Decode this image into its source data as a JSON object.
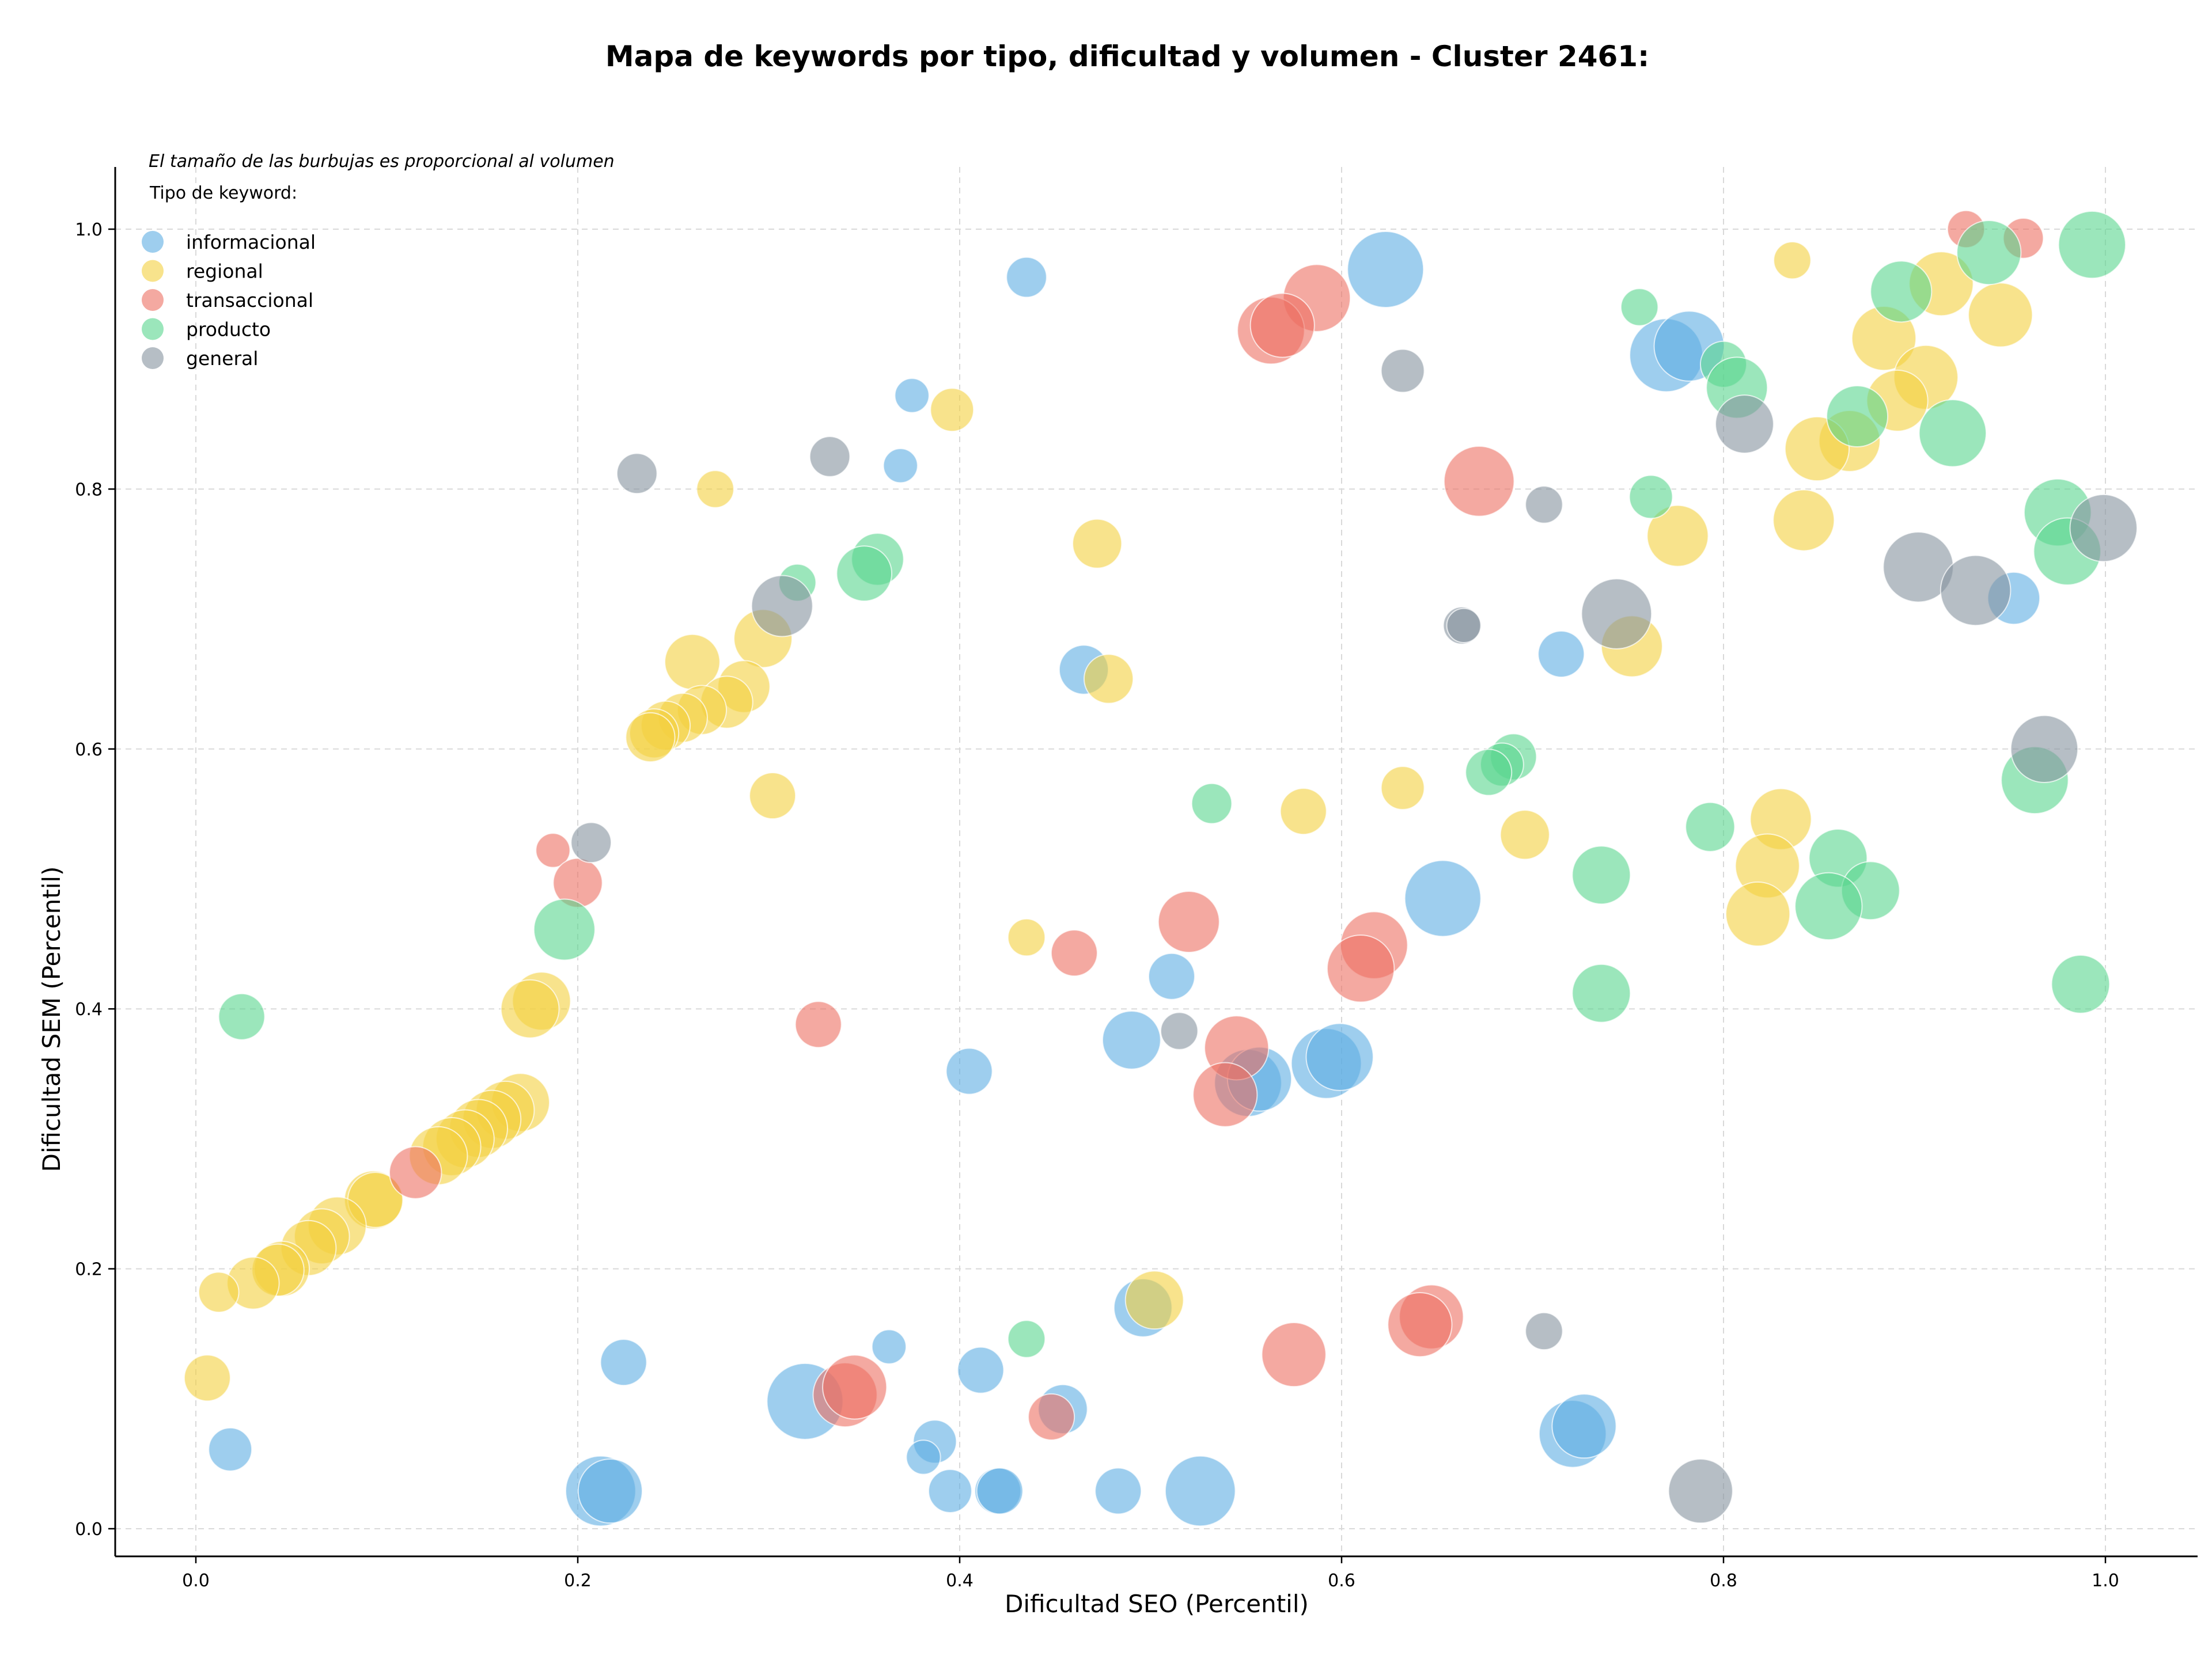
{
  "chart_data": {
    "type": "scatter",
    "title": "Mapa de keywords por tipo, dificultad y volumen - Cluster 2461:",
    "xlabel": "Dificultad SEO (Percentil)",
    "ylabel": "Dificultad SEM (Percentil)",
    "xlim": [
      -0.04,
      1.05
    ],
    "ylim": [
      -0.02,
      1.05
    ],
    "x_ticks": [
      "0.0",
      "0.2",
      "0.4",
      "0.6",
      "0.8",
      "1.0"
    ],
    "y_ticks": [
      "0.0",
      "0.2",
      "0.4",
      "0.6",
      "0.8",
      "1.0"
    ],
    "grid": true,
    "legend_placement": "top-left",
    "legend_title": "Tipo de keyword:",
    "annotation": "El tamaño de las burbujas es proporcional al volumen",
    "series": [
      {
        "name": "informacional",
        "color": "#5DADE2",
        "points": [
          {
            "x": 0.435,
            "y": 0.963,
            "r": 0.4
          },
          {
            "x": 0.375,
            "y": 0.872,
            "r": 0.3
          },
          {
            "x": 0.369,
            "y": 0.818,
            "r": 0.3
          },
          {
            "x": 0.623,
            "y": 0.969,
            "r": 1.0
          },
          {
            "x": 0.77,
            "y": 0.903,
            "r": 0.95
          },
          {
            "x": 0.782,
            "y": 0.91,
            "r": 0.9
          },
          {
            "x": 0.715,
            "y": 0.673,
            "r": 0.5
          },
          {
            "x": 0.952,
            "y": 0.716,
            "r": 0.6
          },
          {
            "x": 0.465,
            "y": 0.661,
            "r": 0.55
          },
          {
            "x": 0.653,
            "y": 0.485,
            "r": 1.0
          },
          {
            "x": 0.511,
            "y": 0.425,
            "r": 0.5
          },
          {
            "x": 0.49,
            "y": 0.376,
            "r": 0.7
          },
          {
            "x": 0.405,
            "y": 0.352,
            "r": 0.5
          },
          {
            "x": 0.551,
            "y": 0.343,
            "r": 0.85
          },
          {
            "x": 0.557,
            "y": 0.346,
            "r": 0.8
          },
          {
            "x": 0.592,
            "y": 0.358,
            "r": 0.9
          },
          {
            "x": 0.599,
            "y": 0.363,
            "r": 0.85
          },
          {
            "x": 0.496,
            "y": 0.17,
            "r": 0.7
          },
          {
            "x": 0.224,
            "y": 0.128,
            "r": 0.5
          },
          {
            "x": 0.319,
            "y": 0.098,
            "r": 1.0
          },
          {
            "x": 0.363,
            "y": 0.14,
            "r": 0.3
          },
          {
            "x": 0.411,
            "y": 0.122,
            "r": 0.5
          },
          {
            "x": 0.387,
            "y": 0.067,
            "r": 0.45
          },
          {
            "x": 0.381,
            "y": 0.055,
            "r": 0.3
          },
          {
            "x": 0.454,
            "y": 0.092,
            "r": 0.55
          },
          {
            "x": 0.395,
            "y": 0.029,
            "r": 0.45
          },
          {
            "x": 0.42,
            "y": 0.029,
            "r": 0.5
          },
          {
            "x": 0.421,
            "y": 0.029,
            "r": 0.5
          },
          {
            "x": 0.483,
            "y": 0.029,
            "r": 0.5
          },
          {
            "x": 0.212,
            "y": 0.029,
            "r": 0.9
          },
          {
            "x": 0.217,
            "y": 0.029,
            "r": 0.8
          },
          {
            "x": 0.526,
            "y": 0.029,
            "r": 0.9
          },
          {
            "x": 0.721,
            "y": 0.073,
            "r": 0.85
          },
          {
            "x": 0.727,
            "y": 0.079,
            "r": 0.8
          },
          {
            "x": 0.018,
            "y": 0.061,
            "r": 0.45
          }
        ]
      },
      {
        "name": "regional",
        "color": "#F4D03F",
        "points": [
          {
            "x": 0.836,
            "y": 0.976,
            "r": 0.35
          },
          {
            "x": 0.396,
            "y": 0.861,
            "r": 0.45
          },
          {
            "x": 0.272,
            "y": 0.8,
            "r": 0.35
          },
          {
            "x": 0.472,
            "y": 0.758,
            "r": 0.55
          },
          {
            "x": 0.914,
            "y": 0.958,
            "r": 0.8
          },
          {
            "x": 0.945,
            "y": 0.934,
            "r": 0.8
          },
          {
            "x": 0.884,
            "y": 0.916,
            "r": 0.8
          },
          {
            "x": 0.906,
            "y": 0.886,
            "r": 0.8
          },
          {
            "x": 0.891,
            "y": 0.868,
            "r": 0.75
          },
          {
            "x": 0.866,
            "y": 0.837,
            "r": 0.75
          },
          {
            "x": 0.849,
            "y": 0.831,
            "r": 0.8
          },
          {
            "x": 0.842,
            "y": 0.776,
            "r": 0.75
          },
          {
            "x": 0.776,
            "y": 0.764,
            "r": 0.75
          },
          {
            "x": 0.752,
            "y": 0.679,
            "r": 0.75
          },
          {
            "x": 0.478,
            "y": 0.654,
            "r": 0.55
          },
          {
            "x": 0.26,
            "y": 0.667,
            "r": 0.65
          },
          {
            "x": 0.297,
            "y": 0.685,
            "r": 0.7
          },
          {
            "x": 0.287,
            "y": 0.648,
            "r": 0.6
          },
          {
            "x": 0.278,
            "y": 0.636,
            "r": 0.6
          },
          {
            "x": 0.265,
            "y": 0.63,
            "r": 0.55
          },
          {
            "x": 0.255,
            "y": 0.624,
            "r": 0.55
          },
          {
            "x": 0.246,
            "y": 0.618,
            "r": 0.55
          },
          {
            "x": 0.24,
            "y": 0.612,
            "r": 0.55
          },
          {
            "x": 0.238,
            "y": 0.609,
            "r": 0.55
          },
          {
            "x": 0.302,
            "y": 0.564,
            "r": 0.5
          },
          {
            "x": 0.632,
            "y": 0.57,
            "r": 0.45
          },
          {
            "x": 0.58,
            "y": 0.552,
            "r": 0.5
          },
          {
            "x": 0.696,
            "y": 0.534,
            "r": 0.55
          },
          {
            "x": 0.83,
            "y": 0.546,
            "r": 0.75
          },
          {
            "x": 0.823,
            "y": 0.51,
            "r": 0.8
          },
          {
            "x": 0.818,
            "y": 0.473,
            "r": 0.8
          },
          {
            "x": 0.435,
            "y": 0.455,
            "r": 0.35
          },
          {
            "x": 0.181,
            "y": 0.406,
            "r": 0.7
          },
          {
            "x": 0.175,
            "y": 0.4,
            "r": 0.7
          },
          {
            "x": 0.17,
            "y": 0.328,
            "r": 0.7
          },
          {
            "x": 0.162,
            "y": 0.322,
            "r": 0.7
          },
          {
            "x": 0.155,
            "y": 0.315,
            "r": 0.7
          },
          {
            "x": 0.148,
            "y": 0.308,
            "r": 0.7
          },
          {
            "x": 0.141,
            "y": 0.3,
            "r": 0.7
          },
          {
            "x": 0.134,
            "y": 0.294,
            "r": 0.7
          },
          {
            "x": 0.127,
            "y": 0.287,
            "r": 0.7
          },
          {
            "x": 0.093,
            "y": 0.253,
            "r": 0.7
          },
          {
            "x": 0.094,
            "y": 0.253,
            "r": 0.65
          },
          {
            "x": 0.074,
            "y": 0.233,
            "r": 0.7
          },
          {
            "x": 0.066,
            "y": 0.225,
            "r": 0.65
          },
          {
            "x": 0.059,
            "y": 0.216,
            "r": 0.65
          },
          {
            "x": 0.045,
            "y": 0.2,
            "r": 0.65
          },
          {
            "x": 0.043,
            "y": 0.199,
            "r": 0.6
          },
          {
            "x": 0.03,
            "y": 0.189,
            "r": 0.6
          },
          {
            "x": 0.012,
            "y": 0.182,
            "r": 0.4
          },
          {
            "x": 0.006,
            "y": 0.116,
            "r": 0.5
          },
          {
            "x": 0.502,
            "y": 0.176,
            "r": 0.7
          }
        ]
      },
      {
        "name": "transaccional",
        "color": "#EC7063",
        "points": [
          {
            "x": 0.927,
            "y": 1.0,
            "r": 0.35
          },
          {
            "x": 0.957,
            "y": 0.993,
            "r": 0.4
          },
          {
            "x": 0.587,
            "y": 0.947,
            "r": 0.85
          },
          {
            "x": 0.563,
            "y": 0.922,
            "r": 0.85
          },
          {
            "x": 0.569,
            "y": 0.926,
            "r": 0.8
          },
          {
            "x": 0.672,
            "y": 0.806,
            "r": 0.9
          },
          {
            "x": 0.187,
            "y": 0.522,
            "r": 0.3
          },
          {
            "x": 0.2,
            "y": 0.497,
            "r": 0.55
          },
          {
            "x": 0.52,
            "y": 0.467,
            "r": 0.75
          },
          {
            "x": 0.46,
            "y": 0.443,
            "r": 0.5
          },
          {
            "x": 0.617,
            "y": 0.449,
            "r": 0.85
          },
          {
            "x": 0.61,
            "y": 0.431,
            "r": 0.85
          },
          {
            "x": 0.326,
            "y": 0.388,
            "r": 0.5
          },
          {
            "x": 0.545,
            "y": 0.37,
            "r": 0.8
          },
          {
            "x": 0.539,
            "y": 0.334,
            "r": 0.8
          },
          {
            "x": 0.647,
            "y": 0.163,
            "r": 0.8
          },
          {
            "x": 0.641,
            "y": 0.157,
            "r": 0.8
          },
          {
            "x": 0.575,
            "y": 0.134,
            "r": 0.8
          },
          {
            "x": 0.34,
            "y": 0.103,
            "r": 0.8
          },
          {
            "x": 0.345,
            "y": 0.109,
            "r": 0.8
          },
          {
            "x": 0.448,
            "y": 0.086,
            "r": 0.5
          },
          {
            "x": 0.115,
            "y": 0.274,
            "r": 0.6
          }
        ]
      },
      {
        "name": "producto",
        "color": "#58D68D",
        "points": [
          {
            "x": 0.993,
            "y": 0.988,
            "r": 0.85
          },
          {
            "x": 0.939,
            "y": 0.982,
            "r": 0.8
          },
          {
            "x": 0.893,
            "y": 0.952,
            "r": 0.75
          },
          {
            "x": 0.756,
            "y": 0.94,
            "r": 0.35
          },
          {
            "x": 0.8,
            "y": 0.896,
            "r": 0.5
          },
          {
            "x": 0.807,
            "y": 0.878,
            "r": 0.75
          },
          {
            "x": 0.87,
            "y": 0.856,
            "r": 0.75
          },
          {
            "x": 0.92,
            "y": 0.843,
            "r": 0.85
          },
          {
            "x": 0.762,
            "y": 0.794,
            "r": 0.45
          },
          {
            "x": 0.975,
            "y": 0.782,
            "r": 0.85
          },
          {
            "x": 0.98,
            "y": 0.752,
            "r": 0.85
          },
          {
            "x": 0.315,
            "y": 0.728,
            "r": 0.35
          },
          {
            "x": 0.357,
            "y": 0.746,
            "r": 0.6
          },
          {
            "x": 0.35,
            "y": 0.735,
            "r": 0.65
          },
          {
            "x": 0.532,
            "y": 0.558,
            "r": 0.4
          },
          {
            "x": 0.69,
            "y": 0.594,
            "r": 0.5
          },
          {
            "x": 0.684,
            "y": 0.588,
            "r": 0.45
          },
          {
            "x": 0.677,
            "y": 0.582,
            "r": 0.5
          },
          {
            "x": 0.963,
            "y": 0.576,
            "r": 0.85
          },
          {
            "x": 0.793,
            "y": 0.54,
            "r": 0.55
          },
          {
            "x": 0.86,
            "y": 0.516,
            "r": 0.7
          },
          {
            "x": 0.736,
            "y": 0.503,
            "r": 0.7
          },
          {
            "x": 0.877,
            "y": 0.491,
            "r": 0.7
          },
          {
            "x": 0.855,
            "y": 0.479,
            "r": 0.85
          },
          {
            "x": 0.736,
            "y": 0.412,
            "r": 0.7
          },
          {
            "x": 0.987,
            "y": 0.419,
            "r": 0.7
          },
          {
            "x": 0.193,
            "y": 0.461,
            "r": 0.75
          },
          {
            "x": 0.024,
            "y": 0.394,
            "r": 0.5
          },
          {
            "x": 0.435,
            "y": 0.146,
            "r": 0.35
          }
        ]
      },
      {
        "name": "general",
        "color": "#85929E",
        "points": [
          {
            "x": 0.632,
            "y": 0.891,
            "r": 0.45
          },
          {
            "x": 0.811,
            "y": 0.85,
            "r": 0.7
          },
          {
            "x": 0.231,
            "y": 0.812,
            "r": 0.4
          },
          {
            "x": 0.332,
            "y": 0.825,
            "r": 0.4
          },
          {
            "x": 0.706,
            "y": 0.788,
            "r": 0.35
          },
          {
            "x": 0.999,
            "y": 0.77,
            "r": 0.85
          },
          {
            "x": 0.902,
            "y": 0.74,
            "r": 0.9
          },
          {
            "x": 0.932,
            "y": 0.722,
            "r": 0.9
          },
          {
            "x": 0.744,
            "y": 0.704,
            "r": 0.9
          },
          {
            "x": 0.307,
            "y": 0.71,
            "r": 0.75
          },
          {
            "x": 0.663,
            "y": 0.695,
            "r": 0.35
          },
          {
            "x": 0.664,
            "y": 0.695,
            "r": 0.3
          },
          {
            "x": 0.968,
            "y": 0.6,
            "r": 0.85
          },
          {
            "x": 0.207,
            "y": 0.528,
            "r": 0.4
          },
          {
            "x": 0.515,
            "y": 0.383,
            "r": 0.35
          },
          {
            "x": 0.706,
            "y": 0.152,
            "r": 0.35
          },
          {
            "x": 0.788,
            "y": 0.029,
            "r": 0.8
          }
        ]
      }
    ]
  }
}
